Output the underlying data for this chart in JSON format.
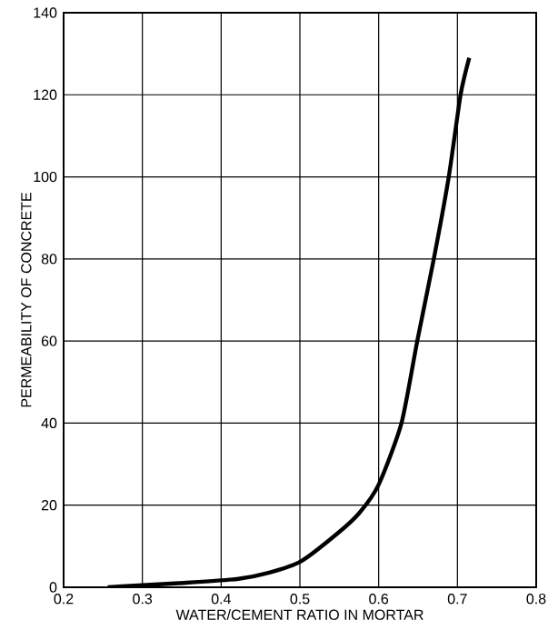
{
  "chart_data": {
    "type": "line",
    "xlabel": "WATER/CEMENT RATIO IN MORTAR",
    "ylabel": "PERMEABILITY OF CONCRETE",
    "xlim": [
      0.2,
      0.8
    ],
    "xticks": [
      0.2,
      0.3,
      0.4,
      0.5,
      0.6,
      0.7,
      0.8
    ],
    "ylim": [
      0,
      140
    ],
    "yticks": [
      0,
      20,
      40,
      60,
      80,
      100,
      120,
      140
    ],
    "grid": true,
    "marker": "none",
    "line_style": "solid",
    "series": [
      {
        "color": "#000000",
        "x": [
          0.256,
          0.3,
          0.346,
          0.42,
          0.46,
          0.502,
          0.547,
          0.575,
          0.6,
          0.629,
          0.649,
          0.67,
          0.689,
          0.704,
          0.715
        ],
        "values": [
          0,
          0.5,
          1,
          2,
          3.5,
          6.4,
          13,
          18,
          25,
          40,
          60,
          80,
          100,
          120,
          129
        ]
      }
    ]
  }
}
